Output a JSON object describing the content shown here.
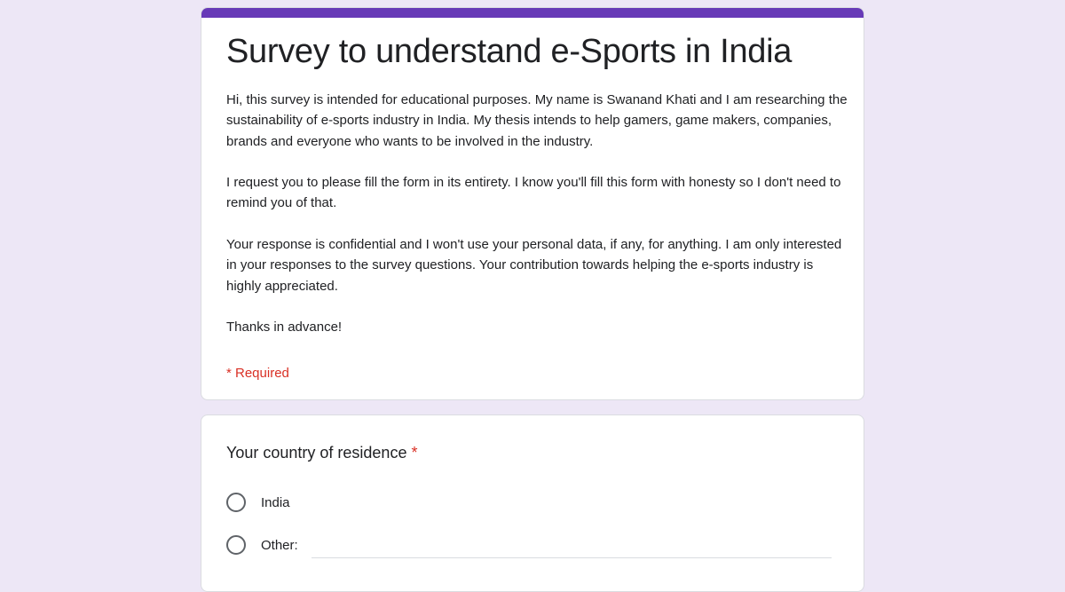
{
  "form": {
    "title": "Survey to understand e-Sports in India",
    "description": [
      "Hi, this survey is intended for educational purposes. My name is Swanand Khati and I am researching the sustainability of e-sports industry in India. My thesis intends to help gamers, game makers, companies, brands and everyone who wants to be involved in the industry.",
      "I request you to please fill the form in its entirety. I know you'll fill this form with honesty so I don't need to remind you of that.",
      "Your response is confidential and I won't use your personal data, if any, for anything. I am only interested in your responses to the survey questions. Your contribution towards helping the e-sports industry is highly appreciated.",
      "Thanks in advance!"
    ],
    "required_note": "* Required",
    "accent_color": "#673ab7",
    "background_color": "#ede7f6"
  },
  "question": {
    "title": "Your country of residence",
    "required_mark": "*",
    "options": [
      "India",
      "Other:"
    ],
    "other_value": ""
  }
}
